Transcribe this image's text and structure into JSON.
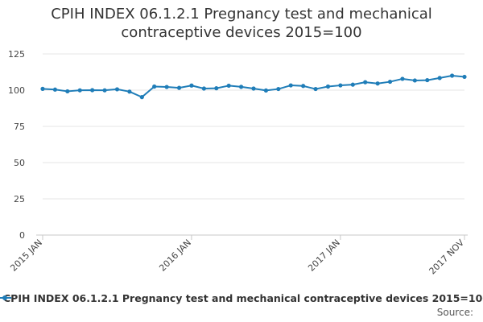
{
  "chart_data": {
    "type": "line",
    "title": "CPIH INDEX 06.1.2.1 Pregnancy test and mechanical contraceptive devices 2015=100",
    "xlabel": "",
    "ylabel": "",
    "ylim": [
      0,
      125
    ],
    "yticks": [
      0,
      25,
      50,
      75,
      100,
      125
    ],
    "grid": true,
    "legend": "bottom",
    "source_label": "Source:",
    "x": [
      "2015 JAN",
      "2015 FEB",
      "2015 MAR",
      "2015 APR",
      "2015 MAY",
      "2015 JUN",
      "2015 JUL",
      "2015 AUG",
      "2015 SEP",
      "2015 OCT",
      "2015 NOV",
      "2015 DEC",
      "2016 JAN",
      "2016 FEB",
      "2016 MAR",
      "2016 APR",
      "2016 MAY",
      "2016 JUN",
      "2016 JUL",
      "2016 AUG",
      "2016 SEP",
      "2016 OCT",
      "2016 NOV",
      "2016 DEC",
      "2017 JAN",
      "2017 FEB",
      "2017 MAR",
      "2017 APR",
      "2017 MAY",
      "2017 JUN",
      "2017 JUL",
      "2017 AUG",
      "2017 SEP",
      "2017 OCT",
      "2017 NOV"
    ],
    "x_tick_labels": [
      "2015 JAN",
      "2016 JAN",
      "2017 JAN",
      "2017 NOV"
    ],
    "series": [
      {
        "name": "CPIH INDEX 06.1.2.1 Pregnancy test and mechanical contraceptive devices 2015=100",
        "color": "#1f7db8",
        "values": [
          100.9,
          100.4,
          99.2,
          99.9,
          100.0,
          99.9,
          100.6,
          99.0,
          95.2,
          102.5,
          102.2,
          101.6,
          103.2,
          101.1,
          101.3,
          103.1,
          102.3,
          101.1,
          99.8,
          100.8,
          103.3,
          102.9,
          100.8,
          102.5,
          103.3,
          103.8,
          105.5,
          104.6,
          105.8,
          107.8,
          106.7,
          106.9,
          108.4,
          110.0,
          109.2
        ]
      }
    ]
  }
}
